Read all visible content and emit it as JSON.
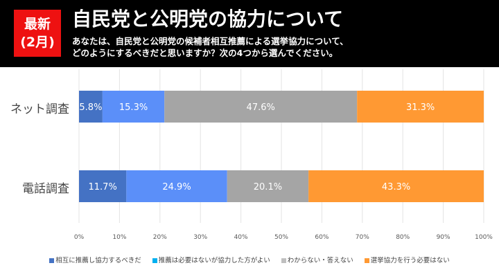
{
  "header": {
    "badge_line1": "最新",
    "badge_line2": "(2月)",
    "title": "自民党と公明党の協力について",
    "subtitle_line1": "あなたは、自民党と公明党の候補者相互推薦による選挙協力について、",
    "subtitle_line2": "どのようにするべきだと思いますか？次の4つから選んでください。"
  },
  "chart_data": {
    "type": "bar",
    "orientation": "horizontal",
    "stacked": true,
    "categories": [
      "ネット調査",
      "電話調査"
    ],
    "series": [
      {
        "name": "相互に推薦し協力するべきだ",
        "color": "#4472c4",
        "values": [
          5.8,
          11.7
        ]
      },
      {
        "name": "推薦は必要はないが協力した方がよい",
        "color": "#5b8ff9",
        "values": [
          15.3,
          24.9
        ]
      },
      {
        "name": "わからない・答えない",
        "color": "#a5a5a5",
        "values": [
          47.6,
          20.1
        ]
      },
      {
        "name": "選挙協力を行う必要はない",
        "color": "#ff9933",
        "values": [
          31.3,
          43.3
        ]
      }
    ],
    "data_labels": [
      [
        "5.8%",
        "15.3%",
        "47.6%",
        "31.3%"
      ],
      [
        "11.7%",
        "24.9%",
        "20.1%",
        "43.3%"
      ]
    ],
    "xticks": [
      "0%",
      "10%",
      "20%",
      "30%",
      "40%",
      "50%",
      "60%",
      "70%",
      "80%",
      "90%",
      "100%"
    ],
    "xlim": [
      0,
      100
    ],
    "grid": true,
    "legend_position": "bottom",
    "legend_swatch_colors": [
      "#4472c4",
      "#00b0f0",
      "#bfbfbf",
      "#ff9933"
    ]
  }
}
